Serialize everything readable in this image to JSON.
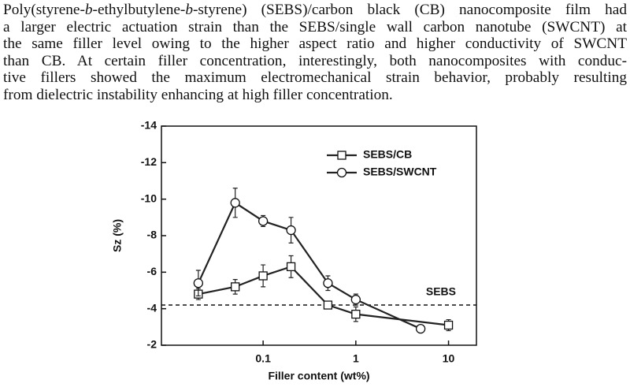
{
  "paragraph": {
    "lines": [
      [
        "Poly(styrene-",
        "b",
        "-ethylbutylene-",
        "b",
        "-styrene) (SEBS)/carbon black (CB) nanocomposite film had"
      ],
      "a larger electric actuation strain than the SEBS/single wall carbon nanotube (SWCNT) at",
      "the same filler level owing to the higher aspect ratio and higher conductivity of SWCNT",
      "than CB. At certain filler concentration, interestingly, both nanocomposites with conduc-",
      "tive fillers showed the maximum electromechanical strain behavior, probably resulting",
      "from dielectric instability enhancing at high filler concentration."
    ]
  },
  "chart_data": {
    "type": "line",
    "x_label": "Filler content (wt%)",
    "y_label": "Sz (%)",
    "xscale": "log",
    "xlim": [
      0.008,
      20
    ],
    "xticks": [
      0.1,
      1,
      10
    ],
    "ylim": [
      -2,
      -14
    ],
    "yticks": [
      -2,
      -4,
      -6,
      -8,
      -10,
      -12,
      -14
    ],
    "legend": "upper right",
    "reference": {
      "label": "SEBS",
      "value": -4.2
    },
    "series": [
      {
        "name": "SEBS/CB",
        "color": "#222222",
        "marker": "square",
        "x": [
          0.02,
          0.05,
          0.1,
          0.2,
          0.5,
          1,
          10
        ],
        "values": [
          -4.8,
          -5.2,
          -5.8,
          -6.3,
          -4.2,
          -3.7,
          -3.1
        ],
        "errors": [
          0.3,
          0.4,
          0.6,
          0.6,
          0.2,
          0.4,
          0.3
        ]
      },
      {
        "name": "SEBS/SWCNT",
        "color": "#222222",
        "marker": "circle",
        "x": [
          0.02,
          0.05,
          0.1,
          0.2,
          0.5,
          1,
          5
        ],
        "values": [
          -5.4,
          -9.8,
          -8.8,
          -8.3,
          -5.4,
          -4.5,
          -2.9
        ],
        "errors": [
          0.7,
          0.8,
          0.3,
          0.7,
          0.4,
          0.3,
          0.2
        ]
      }
    ]
  }
}
